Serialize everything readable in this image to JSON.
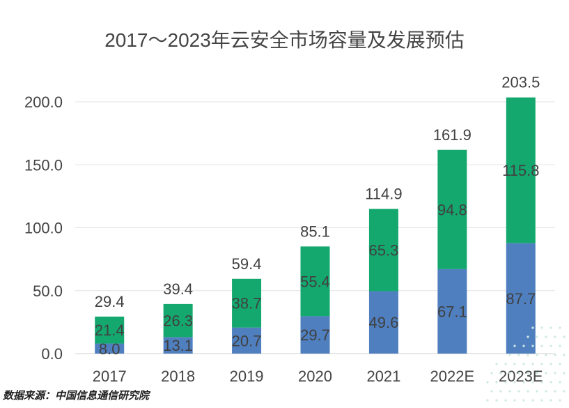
{
  "chart_data": {
    "type": "bar",
    "stacked": true,
    "title": "2017～2023年云安全市场容量及发展预估",
    "categories": [
      "2017",
      "2018",
      "2019",
      "2020",
      "2021",
      "2022E",
      "2023E"
    ],
    "series": [
      {
        "values": [
          8.0,
          13.1,
          20.7,
          29.7,
          49.6,
          67.1,
          87.7
        ],
        "labels": [
          "8.0",
          "13.1",
          "20.7",
          "29.7",
          "49.6",
          "67.1",
          "87.7"
        ],
        "color": "#4f7fbf"
      },
      {
        "values": [
          21.4,
          26.3,
          38.7,
          55.4,
          65.3,
          94.8,
          115.8
        ],
        "labels": [
          "21.4",
          "26.3",
          "38.7",
          "55.4",
          "65.3",
          "94.8",
          "115.8"
        ],
        "color": "#14a86f"
      }
    ],
    "totals": [
      29.4,
      39.4,
      59.4,
      85.1,
      114.9,
      161.9,
      203.5
    ],
    "total_labels": [
      "29.4",
      "39.4",
      "59.4",
      "85.1",
      "114.9",
      "161.9",
      "203.5"
    ],
    "ylim": [
      0,
      200
    ],
    "yticks": [
      0,
      50,
      100,
      150,
      200
    ],
    "ytick_labels": [
      "0.0",
      "50.0",
      "100.0",
      "150.0",
      "200.0"
    ],
    "grid": true,
    "legend": "none"
  },
  "footer": {
    "source": "数据来源：中国信息通信研究院"
  }
}
